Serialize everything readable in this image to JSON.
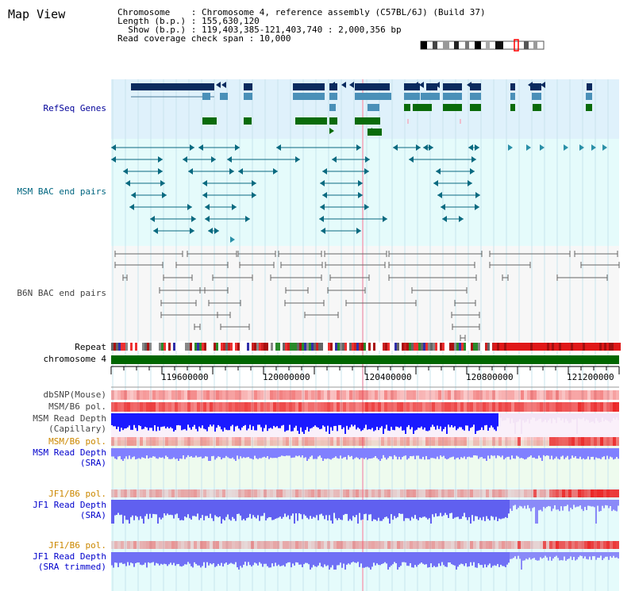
{
  "title": "Map View",
  "info": {
    "chromosome": "Chromosome    : Chromosome 4, reference assembly (C57BL/6J) (Build 37)",
    "length": "Length (b.p.) : 155,630,120",
    "show": "  Show (b.p.) : 119,403,385-121,403,740 : 2,000,356 bp",
    "coverage": "Read coverage check span : 10,000"
  },
  "tracks": {
    "refseq": "RefSeq Genes",
    "msm_bac": "MSM BAC end pairs",
    "b6n_bac": "B6N BAC end pairs",
    "repeat": "Repeat",
    "chromosome": "chromosome 4",
    "dbsnp": "dbSNP(Mouse)",
    "msm_b6_pol": "MSM/B6 pol.",
    "msm_depth_cap_1": "MSM Read Depth",
    "msm_depth_cap_2": "(Capillary)",
    "msm_b6_pol2": "MSM/B6 pol.",
    "msm_depth_sra_1": "MSM Read Depth",
    "msm_depth_sra_2": "(SRA)",
    "jf1_b6_pol": "JF1/B6 pol.",
    "jf1_depth_1": "JF1 Read Depth",
    "jf1_depth_2": "(SRA)",
    "jf1_b6_pol2": "JF1/B6 pol.",
    "jf1_trim_1": "JF1 Read Depth",
    "jf1_trim_2": "(SRA trimmed)"
  },
  "axis_ticks": [
    "119600000",
    "120000000",
    "120400000",
    "120800000",
    "121200000"
  ],
  "colors": {
    "navy_gene": "#0a2a5e",
    "steel_gene": "#4a90b8",
    "green_gene": "#0a6b0a",
    "refseq_bg": "#dff1fb",
    "msm_bg": "#e5fbfb",
    "b6n_bg": "#f7f7f7",
    "depth_blue": "#1a1aff",
    "depth_light": "#8080ff",
    "pol_red": "#ff2020",
    "chrom_green": "#006600"
  }
}
